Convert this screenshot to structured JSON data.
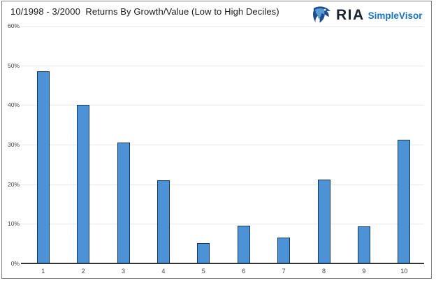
{
  "header": {
    "title": "10/1998 - 3/2000  Returns By Growth/Value (Low to High Deciles)"
  },
  "brand": {
    "name": "RIA",
    "product": "SimpleVisor",
    "icon": "eagle-logo-icon",
    "name_color": "#1b2230",
    "product_color": "#1b75bc"
  },
  "chart_data": {
    "type": "bar",
    "title": "10/1998 - 3/2000  Returns By Growth/Value (Low to High Deciles)",
    "categories": [
      "1",
      "2",
      "3",
      "4",
      "5",
      "6",
      "7",
      "8",
      "9",
      "10"
    ],
    "values": [
      48.5,
      40.0,
      30.6,
      21.0,
      5.2,
      9.5,
      6.5,
      21.1,
      9.3,
      31.2
    ],
    "unit": "%",
    "xlabel": "",
    "ylabel": "",
    "ylim": [
      0,
      60
    ],
    "yticks": [
      0,
      10,
      20,
      30,
      40,
      50,
      60
    ],
    "ytick_labels": [
      "0%",
      "10%",
      "20%",
      "30%",
      "40%",
      "50%",
      "60%"
    ],
    "grid": true,
    "legend": false,
    "bar_fill": "#4b92d6",
    "bar_border": "#16365c",
    "gridline_color": "#e9e9e9",
    "axis_color": "#333333"
  }
}
